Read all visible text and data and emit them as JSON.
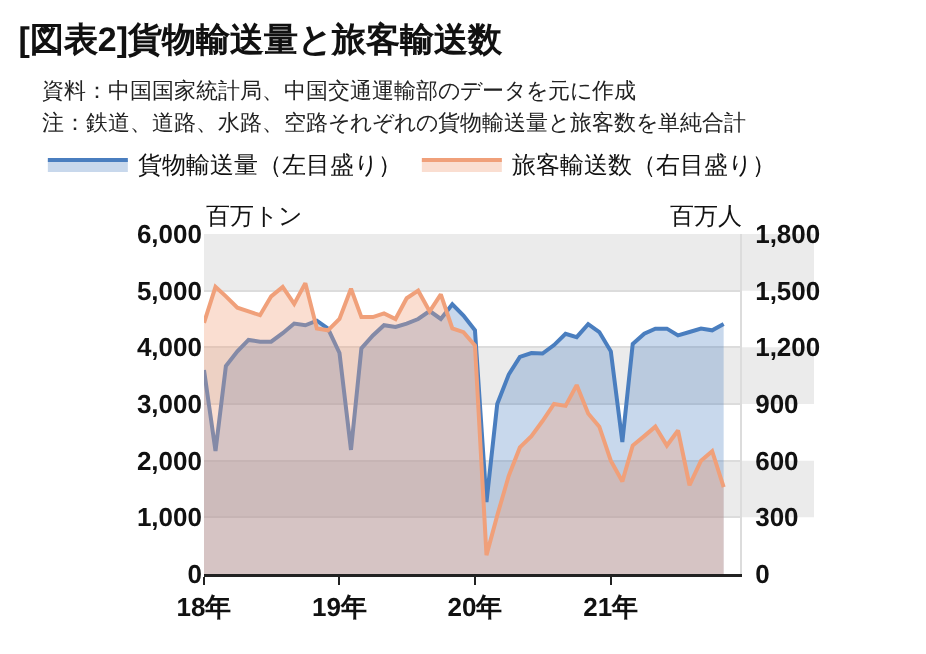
{
  "chart_data": {
    "type": "area",
    "title": "[図表2]貨物輸送量と旅客輸送数",
    "annotations": [
      "資料：中国国家統計局、中国交通運輸部のデータを元に作成",
      "注：鉄道、道路、水路、空路それぞれの貨物輸送量と旅客数を単純合計"
    ],
    "ylabel": "百万トン",
    "y2label": "百万人",
    "x": [
      "2018-01",
      "2018-02",
      "2018-03",
      "2018-04",
      "2018-05",
      "2018-06",
      "2018-07",
      "2018-08",
      "2018-09",
      "2018-10",
      "2018-11",
      "2018-12",
      "2019-01",
      "2019-02",
      "2019-03",
      "2019-04",
      "2019-05",
      "2019-06",
      "2019-07",
      "2019-08",
      "2019-09",
      "2019-10",
      "2019-11",
      "2019-12",
      "2020-01",
      "2020-02",
      "2020-03",
      "2020-04",
      "2020-05",
      "2020-06",
      "2020-07",
      "2020-08",
      "2020-09",
      "2020-10",
      "2020-11",
      "2020-12",
      "2021-01",
      "2021-02",
      "2021-03",
      "2021-04",
      "2021-05",
      "2021-06",
      "2021-07",
      "2021-08",
      "2021-09",
      "2021-10",
      "2021-11"
    ],
    "series": [
      {
        "name": "貨物輸送量（左目盛り）",
        "color": "#4a7ebf",
        "values": [
          3600,
          2170,
          3670,
          3930,
          4130,
          4100,
          4100,
          4250,
          4420,
          4390,
          4470,
          4330,
          3900,
          2190,
          3980,
          4210,
          4390,
          4360,
          4420,
          4500,
          4640,
          4500,
          4760,
          4560,
          4300,
          1270,
          3000,
          3520,
          3830,
          3900,
          3890,
          4040,
          4240,
          4180,
          4410,
          4270,
          3930,
          2330,
          4060,
          4240,
          4330,
          4330,
          4210,
          4270,
          4330,
          4300,
          4410
        ]
      },
      {
        "name": "旅客輸送数（右目盛り）",
        "color": "#f0a07a",
        "axis": "y2",
        "values": [
          1330,
          1520,
          1470,
          1410,
          1390,
          1370,
          1470,
          1520,
          1430,
          1540,
          1300,
          1290,
          1350,
          1510,
          1360,
          1360,
          1380,
          1350,
          1460,
          1500,
          1390,
          1480,
          1300,
          1280,
          1210,
          100,
          310,
          520,
          670,
          730,
          810,
          900,
          890,
          1000,
          850,
          780,
          600,
          490,
          680,
          730,
          780,
          680,
          760,
          470,
          600,
          650,
          460
        ]
      }
    ],
    "xlim": [
      "2018-01-01",
      "2021-12-15"
    ],
    "xticks": [
      {
        "value": "2018-01-01",
        "label": "18年"
      },
      {
        "value": "2019-01-01",
        "label": "19年"
      },
      {
        "value": "2020-01-01",
        "label": "20年"
      },
      {
        "value": "2021-01-01",
        "label": "21年"
      }
    ],
    "ylim": [
      0,
      6000
    ],
    "yticks": [
      {
        "value": 0,
        "label": "0"
      },
      {
        "value": 1000,
        "label": "1,000"
      },
      {
        "value": 2000,
        "label": "2,000"
      },
      {
        "value": 3000,
        "label": "3,000"
      },
      {
        "value": 4000,
        "label": "4,000"
      },
      {
        "value": 5000,
        "label": "5,000"
      },
      {
        "value": 6000,
        "label": "6,000"
      }
    ],
    "y2lim": [
      0,
      1800
    ],
    "y2ticks": [
      {
        "value": 0,
        "label": "0"
      },
      {
        "value": 300,
        "label": "300"
      },
      {
        "value": 600,
        "label": "600"
      },
      {
        "value": 900,
        "label": "900"
      },
      {
        "value": 1200,
        "label": "1,200"
      },
      {
        "value": 1500,
        "label": "1,500"
      },
      {
        "value": 1800,
        "label": "1,800"
      }
    ],
    "grid": true,
    "legend": "top",
    "marker": "none",
    "line_style": "solid"
  }
}
